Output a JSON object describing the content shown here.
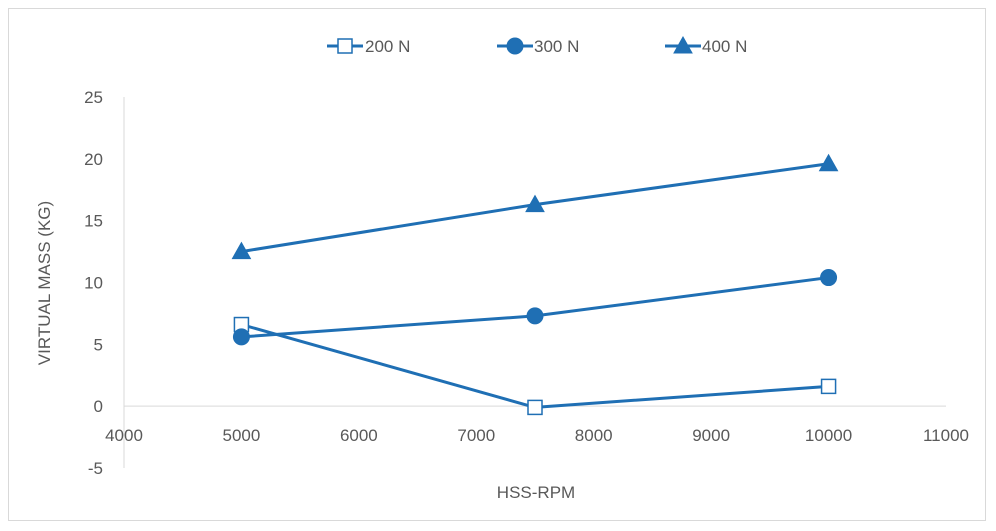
{
  "chart_data": {
    "type": "scatter",
    "xlabel": "HSS-RPM",
    "ylabel": "VIRTUAL MASS (KG)",
    "xlim": [
      4000,
      11000
    ],
    "ylim": [
      -5,
      25
    ],
    "x_ticks": [
      4000,
      5000,
      6000,
      7000,
      8000,
      9000,
      10000,
      11000
    ],
    "y_ticks": [
      -5,
      0,
      5,
      10,
      15,
      20,
      25
    ],
    "grid": false,
    "legend_position": "top",
    "color": "#1f6fb4",
    "series": [
      {
        "name": "200 N",
        "marker": "open-square",
        "x": [
          5000,
          7500,
          10000
        ],
        "y": [
          6.6,
          -0.1,
          1.6
        ]
      },
      {
        "name": "300 N",
        "marker": "filled-circle",
        "x": [
          5000,
          7500,
          10000
        ],
        "y": [
          5.6,
          7.3,
          10.4
        ]
      },
      {
        "name": "400 N",
        "marker": "filled-triangle",
        "x": [
          5000,
          7500,
          10000
        ],
        "y": [
          12.5,
          16.3,
          19.6
        ]
      }
    ]
  }
}
